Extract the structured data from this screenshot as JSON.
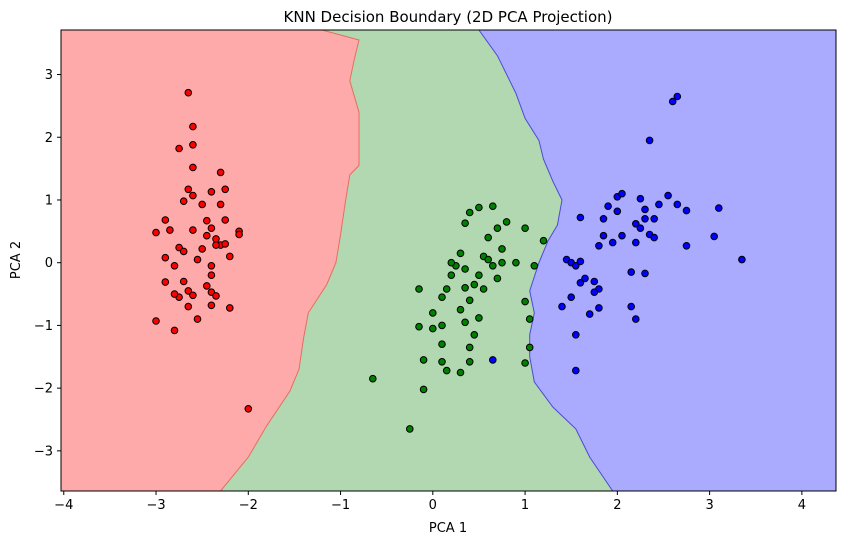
{
  "chart_data": {
    "type": "scatter",
    "title": "KNN Decision Boundary (2D PCA Projection)",
    "xlabel": "PCA 1",
    "ylabel": "PCA 2",
    "xlim": [
      -4.03,
      4.37
    ],
    "ylim": [
      -3.64,
      3.71
    ],
    "xticks": [
      "−4",
      "−3",
      "−2",
      "−1",
      "0",
      "1",
      "2",
      "3",
      "4"
    ],
    "yticks": [
      "3",
      "2",
      "1",
      "0",
      "−1",
      "−2",
      "−3"
    ],
    "grid": false,
    "regions": [
      {
        "name": "class 0 region",
        "color": "#ffaaaa"
      },
      {
        "name": "class 1 region",
        "color": "#b2d8b2"
      },
      {
        "name": "class 2 region",
        "color": "#aaaaff"
      }
    ],
    "boundaries": [
      {
        "between": "red-green",
        "color": "#e07060",
        "points": [
          [
            -1.2,
            3.71
          ],
          [
            -0.8,
            3.55
          ],
          [
            -0.85,
            3.25
          ],
          [
            -0.9,
            2.9
          ],
          [
            -0.8,
            2.4
          ],
          [
            -0.8,
            2.0
          ],
          [
            -0.8,
            1.55
          ],
          [
            -0.9,
            1.4
          ],
          [
            -0.95,
            0.95
          ],
          [
            -1.0,
            0.45
          ],
          [
            -1.05,
            0.0
          ],
          [
            -1.15,
            -0.35
          ],
          [
            -1.35,
            -0.8
          ],
          [
            -1.4,
            -1.2
          ],
          [
            -1.45,
            -1.7
          ],
          [
            -1.55,
            -2.05
          ],
          [
            -1.8,
            -2.6
          ],
          [
            -2.0,
            -3.1
          ],
          [
            -2.3,
            -3.64
          ]
        ]
      },
      {
        "between": "green-blue",
        "color": "#4a4ad8",
        "points": [
          [
            0.5,
            3.71
          ],
          [
            0.7,
            3.3
          ],
          [
            0.9,
            2.7
          ],
          [
            1.0,
            2.3
          ],
          [
            1.15,
            1.95
          ],
          [
            1.2,
            1.65
          ],
          [
            1.3,
            1.3
          ],
          [
            1.4,
            1.0
          ],
          [
            1.35,
            0.6
          ],
          [
            1.25,
            0.35
          ],
          [
            1.15,
            0.0
          ],
          [
            1.05,
            -0.45
          ],
          [
            1.1,
            -0.8
          ],
          [
            1.05,
            -1.15
          ],
          [
            1.05,
            -1.5
          ],
          [
            1.1,
            -1.9
          ],
          [
            1.3,
            -2.3
          ],
          [
            1.55,
            -2.65
          ],
          [
            1.7,
            -3.1
          ],
          [
            1.95,
            -3.64
          ]
        ]
      }
    ],
    "series": [
      {
        "color": "#ff0000",
        "points": [
          [
            -2.65,
            2.71
          ],
          [
            -2.6,
            2.17
          ],
          [
            -2.75,
            1.82
          ],
          [
            -2.6,
            1.88
          ],
          [
            -2.6,
            1.52
          ],
          [
            -2.3,
            1.44
          ],
          [
            -2.65,
            1.17
          ],
          [
            -2.6,
            1.07
          ],
          [
            -2.4,
            1.13
          ],
          [
            -2.25,
            1.17
          ],
          [
            -2.7,
            0.98
          ],
          [
            -2.5,
            0.93
          ],
          [
            -2.3,
            0.93
          ],
          [
            -2.9,
            0.68
          ],
          [
            -2.45,
            0.67
          ],
          [
            -2.25,
            0.68
          ],
          [
            -3.0,
            0.48
          ],
          [
            -2.85,
            0.52
          ],
          [
            -2.6,
            0.52
          ],
          [
            -2.4,
            0.55
          ],
          [
            -2.1,
            0.5
          ],
          [
            -2.45,
            0.43
          ],
          [
            -2.35,
            0.38
          ],
          [
            -2.3,
            0.28
          ],
          [
            -2.75,
            0.24
          ],
          [
            -2.7,
            0.18
          ],
          [
            -2.5,
            0.22
          ],
          [
            -2.2,
            0.1
          ],
          [
            -2.9,
            0.08
          ],
          [
            -2.8,
            -0.05
          ],
          [
            -2.4,
            -0.05
          ],
          [
            -2.55,
            0.05
          ],
          [
            -2.4,
            -0.2
          ],
          [
            -2.9,
            -0.31
          ],
          [
            -2.7,
            -0.3
          ],
          [
            -2.45,
            -0.37
          ],
          [
            -2.65,
            -0.45
          ],
          [
            -2.4,
            -0.47
          ],
          [
            -2.75,
            -0.55
          ],
          [
            -2.6,
            -0.52
          ],
          [
            -2.35,
            -0.53
          ],
          [
            -2.8,
            -0.5
          ],
          [
            -2.65,
            -0.7
          ],
          [
            -2.4,
            -0.68
          ],
          [
            -2.2,
            -0.72
          ],
          [
            -2.55,
            -0.9
          ],
          [
            -3.0,
            -0.93
          ],
          [
            -2.8,
            -1.08
          ],
          [
            -2.0,
            -2.33
          ],
          [
            -2.35,
            0.28
          ],
          [
            -2.1,
            0.45
          ],
          [
            -2.25,
            0.3
          ]
        ]
      },
      {
        "color": "#008000",
        "points": [
          [
            0.5,
            0.88
          ],
          [
            0.4,
            0.8
          ],
          [
            0.35,
            0.63
          ],
          [
            0.65,
            0.9
          ],
          [
            0.8,
            0.65
          ],
          [
            0.7,
            0.55
          ],
          [
            1.0,
            0.55
          ],
          [
            0.6,
            0.4
          ],
          [
            1.2,
            0.35
          ],
          [
            0.75,
            0.22
          ],
          [
            0.55,
            0.1
          ],
          [
            0.3,
            0.15
          ],
          [
            0.25,
            -0.05
          ],
          [
            0.35,
            -0.1
          ],
          [
            0.6,
            0.05
          ],
          [
            0.65,
            -0.05
          ],
          [
            0.75,
            0.0
          ],
          [
            0.9,
            0.0
          ],
          [
            1.1,
            -0.05
          ],
          [
            0.2,
            -0.2
          ],
          [
            0.5,
            -0.2
          ],
          [
            0.7,
            -0.25
          ],
          [
            0.45,
            -0.35
          ],
          [
            0.35,
            -0.4
          ],
          [
            0.55,
            -0.42
          ],
          [
            0.15,
            -0.42
          ],
          [
            0.1,
            -0.55
          ],
          [
            0.4,
            -0.6
          ],
          [
            0.3,
            -0.75
          ],
          [
            0.0,
            -0.8
          ],
          [
            0.5,
            -0.88
          ],
          [
            0.35,
            -0.95
          ],
          [
            0.1,
            -1.0
          ],
          [
            -0.15,
            -1.02
          ],
          [
            0.0,
            -1.05
          ],
          [
            0.45,
            -1.15
          ],
          [
            0.1,
            -1.3
          ],
          [
            0.4,
            -1.35
          ],
          [
            -0.1,
            -1.55
          ],
          [
            0.1,
            -1.58
          ],
          [
            0.4,
            -1.58
          ],
          [
            0.15,
            -1.72
          ],
          [
            0.3,
            -1.75
          ],
          [
            -0.65,
            -1.85
          ],
          [
            -0.1,
            -2.02
          ],
          [
            -0.25,
            -2.65
          ],
          [
            1.0,
            -0.62
          ],
          [
            1.05,
            -0.9
          ],
          [
            1.05,
            -1.35
          ],
          [
            1.0,
            -1.6
          ],
          [
            0.2,
            0.0
          ],
          [
            -0.15,
            -0.42
          ]
        ]
      },
      {
        "color": "#0000ff",
        "points": [
          [
            2.65,
            2.65
          ],
          [
            2.6,
            2.57
          ],
          [
            2.35,
            1.95
          ],
          [
            2.0,
            1.05
          ],
          [
            2.05,
            1.1
          ],
          [
            2.25,
            1.02
          ],
          [
            2.55,
            1.07
          ],
          [
            2.45,
            0.93
          ],
          [
            2.65,
            0.93
          ],
          [
            1.9,
            0.9
          ],
          [
            2.0,
            0.82
          ],
          [
            2.3,
            0.85
          ],
          [
            3.1,
            0.87
          ],
          [
            2.75,
            0.83
          ],
          [
            1.6,
            0.72
          ],
          [
            1.85,
            0.7
          ],
          [
            2.3,
            0.7
          ],
          [
            2.4,
            0.7
          ],
          [
            2.2,
            0.62
          ],
          [
            2.25,
            0.55
          ],
          [
            2.05,
            0.43
          ],
          [
            1.85,
            0.43
          ],
          [
            2.35,
            0.45
          ],
          [
            2.4,
            0.4
          ],
          [
            3.05,
            0.42
          ],
          [
            1.95,
            0.32
          ],
          [
            1.8,
            0.27
          ],
          [
            2.2,
            0.32
          ],
          [
            2.75,
            0.27
          ],
          [
            1.45,
            0.05
          ],
          [
            1.5,
            0.0
          ],
          [
            1.55,
            -0.05
          ],
          [
            1.6,
            0.02
          ],
          [
            3.35,
            0.05
          ],
          [
            2.15,
            -0.15
          ],
          [
            2.3,
            -0.17
          ],
          [
            1.75,
            -0.3
          ],
          [
            1.6,
            -0.32
          ],
          [
            1.65,
            -0.25
          ],
          [
            1.8,
            -0.42
          ],
          [
            1.75,
            -0.47
          ],
          [
            1.5,
            -0.55
          ],
          [
            1.4,
            -0.7
          ],
          [
            1.8,
            -0.72
          ],
          [
            2.15,
            -0.7
          ],
          [
            1.7,
            -0.82
          ],
          [
            2.2,
            -0.9
          ],
          [
            1.55,
            -1.15
          ],
          [
            1.55,
            -1.72
          ],
          [
            0.65,
            -1.55
          ]
        ]
      }
    ]
  }
}
